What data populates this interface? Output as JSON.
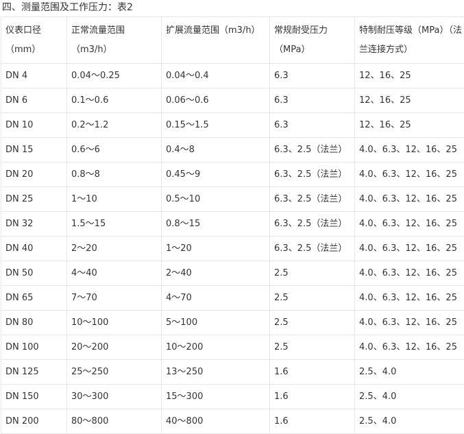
{
  "title": "四、测量范围及工作压力：表2",
  "headers": [
    "仪表口径（mm）",
    "正常流量范围（m3/h）",
    "扩展流量范围（m3/h）",
    "常规耐受压力（MPa）",
    "特制耐压等级（MPa）（法兰连接方式）"
  ],
  "rows": [
    [
      "DN 4",
      "0.04～0.25",
      "0.04～0.4",
      "6.3",
      "12、16、25"
    ],
    [
      "DN 6",
      "0.1～0.6",
      "0.06～0.6",
      "6.3",
      "12、16、25"
    ],
    [
      "DN 10",
      "0.2～1.2",
      "0.15～1.5",
      "6.3",
      "12、16、25"
    ],
    [
      "DN 15",
      "0.6～6",
      "0.4～8",
      "6.3、2.5（法兰）",
      "4.0、6.3、12、16、25"
    ],
    [
      "DN 20",
      "0.8～8",
      "0.45～9",
      "6.3、2.5（法兰）",
      "4.0、6.3、12、16、25"
    ],
    [
      "DN 25",
      "1～10",
      "0.5～10",
      "6.3、2.5（法兰）",
      "4.0、6.3、12、16、25"
    ],
    [
      "DN 32",
      "1.5～15",
      "0.8～15",
      "6.3、2.5（法兰）",
      "4.0、6.3、12、16、25"
    ],
    [
      "DN 40",
      "2～20",
      "1～20",
      "6.3、2.5（法兰）",
      "4.0、6.3、12、16、25"
    ],
    [
      "DN 50",
      "4～40",
      "2～40",
      "2.5",
      "4.0、6.3、12、16、25"
    ],
    [
      "DN 65",
      "7～70",
      "4～70",
      "2.5",
      "4.0、6.3、12、16、25"
    ],
    [
      "DN 80",
      "10～100",
      "5～100",
      "2.5",
      "4.0、6.3、12、16、25"
    ],
    [
      "DN 100",
      "20～200",
      "10～200",
      "2.5",
      "4.0、6.3、12、16、25"
    ],
    [
      "DN 125",
      "25～250",
      "13～250",
      "1.6",
      "2.5、4.0"
    ],
    [
      "DN 150",
      "30～300",
      "15～300",
      "1.6",
      "2.5、4.0"
    ],
    [
      "DN 200",
      "80～800",
      "40～800",
      "1.6",
      "2.5、4.0"
    ]
  ]
}
